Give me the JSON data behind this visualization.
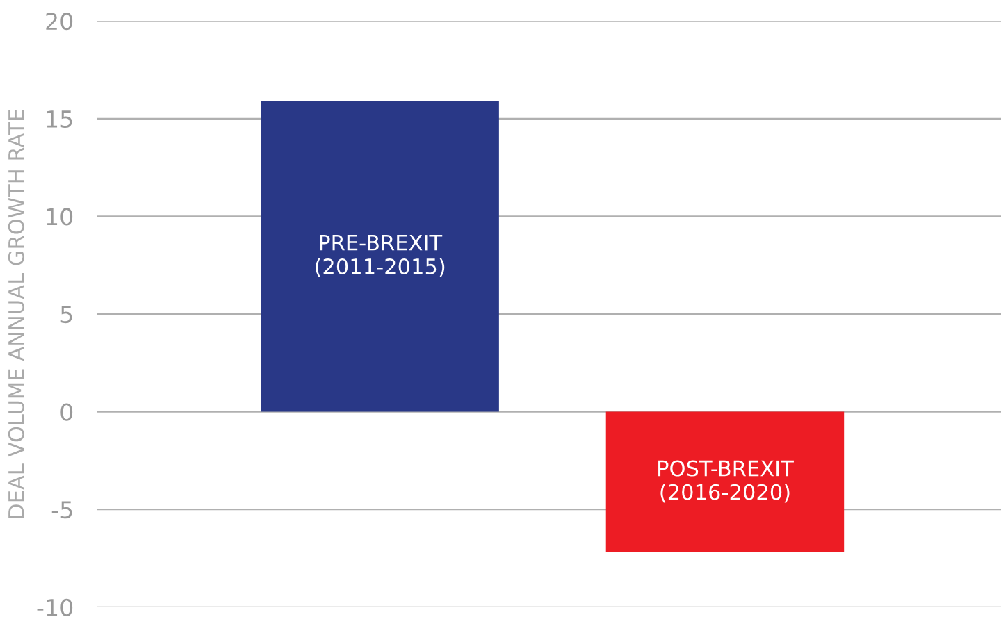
{
  "chart_data": {
    "type": "bar",
    "ylabel": "DEAL VOLUME ANNUAL GROWTH RATE",
    "categories": [
      "PRE-BREXIT\n(2011-2015)",
      "POST-BREXIT\n(2016-2020)"
    ],
    "values": [
      15.9,
      -7.2
    ],
    "colors": [
      "#293887",
      "#ed1c24"
    ],
    "ylim": [
      -10,
      20
    ],
    "yticks": [
      -10,
      -5,
      0,
      5,
      10,
      15,
      20
    ],
    "grid": "y",
    "tick_labels": "y"
  }
}
